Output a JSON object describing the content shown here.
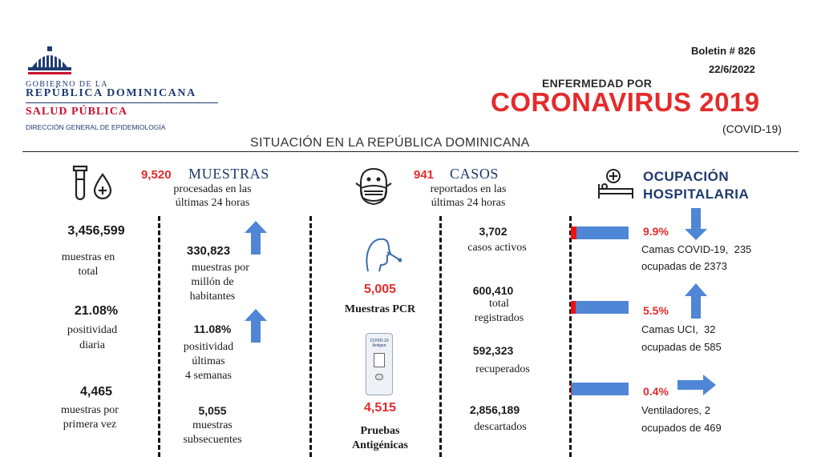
{
  "logo": {
    "line1": "GOBIERNO DE LA",
    "line2": "REPÚBLICA DOMINICANA",
    "line3": "SALUD PÚBLICA",
    "line4": "DIRECCIÓN GENERAL DE EPIDEMIOLOGÍA"
  },
  "header": {
    "bulletin": "Boletin # 826",
    "date": "22/6/2022",
    "kicker": "ENFERMEDAD POR",
    "title": "CORONAVIRUS 2019",
    "subtitle": "(COVID-19)",
    "section": "SITUACIÓN EN LA REPÚBLICA DOMINICANA"
  },
  "muestras": {
    "count": "9,520",
    "title": "MUESTRAS",
    "desc1": "procesadas en las",
    "desc2": "últimas 24 horas",
    "total_value": "3,456,599",
    "total_label1": "muestras en",
    "total_label2": "total",
    "pos_value": "21.08%",
    "pos_label1": "positividad",
    "pos_label2": "diaria",
    "first_value": "4,465",
    "first_label1": "muestras por",
    "first_label2": "primera vez",
    "permillion_value": "330,823",
    "permillion_label1": "muestras por",
    "permillion_label2": "millón de",
    "permillion_label3": "habitantes",
    "pos4_value": "11.08%",
    "pos4_label1": "positividad",
    "pos4_label2": "últimas",
    "pos4_label3": "4 semanas",
    "subseq_value": "5,055",
    "subseq_label1": "muestras",
    "subseq_label2": "subsecuentes"
  },
  "casos": {
    "count": "941",
    "title": "CASOS",
    "desc1": "reportados en las",
    "desc2": "últimas 24 horas",
    "pcr_value": "5,005",
    "pcr_label": "Muestras PCR",
    "antigen_value": "4,515",
    "antigen_label1": "Pruebas",
    "antigen_label2": "Antigénicas",
    "antigen_kit": "COVID-19 Antigen",
    "active_value": "3,702",
    "active_label": "casos activos",
    "total_value": "600,410",
    "total_label1": "total",
    "total_label2": "registrados",
    "recovered_value": "592,323",
    "recovered_label": "recuperados",
    "discarded_value": "2,856,189",
    "discarded_label": "descartados"
  },
  "ocupacion": {
    "title1": "OCUPACIÓN",
    "title2": "HOSPITALARIA",
    "items": [
      {
        "pct": "9.9%",
        "fraction": 0.099,
        "label1": "Camas COVID-19,  235",
        "label2": "ocupadas de 2373",
        "trend": "down"
      },
      {
        "pct": "5.5%",
        "fraction": 0.055,
        "label1": "Camas UCI,  32",
        "label2": "ocupadas de 585",
        "trend": "up"
      },
      {
        "pct": "0.4%",
        "fraction": 0.004,
        "label1": "Ventiladores, 2",
        "label2": "ocupados de 469",
        "trend": "right"
      }
    ]
  },
  "colors": {
    "red": "#e32b2b",
    "navy": "#1f3a6e",
    "arrow": "#4f86d6",
    "bar_fill": "#ee1111"
  }
}
